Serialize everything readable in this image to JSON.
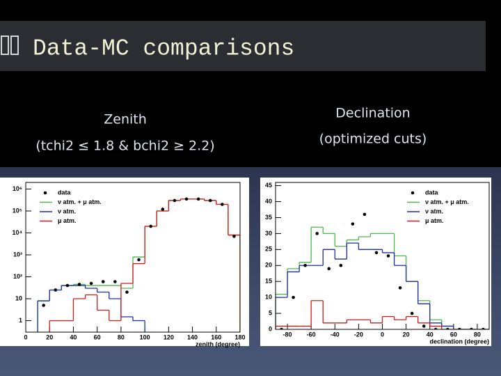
{
  "title": "Data-MC comparisons",
  "panels": [
    {
      "heading": "Zenith",
      "subheading": "(tchi2 ≤ 1.8 & bchi2 ≥ 2.2)"
    },
    {
      "heading": "Declination",
      "subheading": "(optimized cuts)"
    }
  ],
  "chart_data": [
    {
      "type": "histogram",
      "xlabel": "zenith (degree)",
      "xlim": [
        0,
        180
      ],
      "xticks": [
        0,
        20,
        40,
        60,
        80,
        100,
        120,
        140,
        160,
        180
      ],
      "ylim": [
        0.3,
        2000000
      ],
      "ylog": true,
      "yticks": [
        1,
        10,
        {
          "value": 100,
          "label": "10²"
        },
        {
          "value": 1000,
          "label": "10³"
        },
        {
          "value": 10000,
          "label": "10⁴"
        },
        {
          "value": 100000,
          "label": "10⁵"
        },
        {
          "value": 1000000,
          "label": "10⁶"
        }
      ],
      "legend": "upper left",
      "series": [
        {
          "name": "data",
          "color": "#000000",
          "kind": "points",
          "bins": [
            10,
            20,
            30,
            40,
            50,
            60,
            70,
            80,
            90,
            100,
            110,
            120,
            130,
            140,
            150,
            160,
            170,
            180
          ],
          "values": [
            5,
            25,
            40,
            45,
            50,
            60,
            60,
            20,
            600,
            20000,
            120000,
            300000,
            350000,
            350000,
            300000,
            200000,
            7000
          ]
        },
        {
          "name": "ν atm. + μ atm.",
          "color": "#4cb848",
          "kind": "step",
          "bins": [
            10,
            20,
            30,
            40,
            50,
            60,
            70,
            80,
            90,
            100,
            110,
            120,
            130,
            140,
            150,
            160,
            170,
            180
          ],
          "values": [
            8,
            25,
            40,
            45,
            40,
            40,
            40,
            30,
            800,
            20000,
            100000,
            300000,
            350000,
            350000,
            300000,
            200000,
            8000
          ]
        },
        {
          "name": "ν atm.",
          "color": "#1c2ca8",
          "kind": "step",
          "bins": [
            10,
            20,
            30,
            40,
            50,
            60,
            70,
            80,
            90,
            100
          ],
          "values": [
            8,
            25,
            40,
            40,
            30,
            20,
            10,
            1.5,
            1
          ]
        },
        {
          "name": "μ atm.",
          "color": "#d01818",
          "kind": "step",
          "bins": [
            20,
            30,
            40,
            50,
            60,
            70,
            80,
            90,
            100,
            110,
            120,
            130,
            140,
            150,
            160,
            170,
            180
          ],
          "values": [
            1,
            1,
            10,
            15,
            3,
            1,
            50,
            400,
            20000,
            100000,
            300000,
            350000,
            350000,
            300000,
            200000,
            8000
          ]
        }
      ]
    },
    {
      "type": "histogram",
      "xlabel": "declination (degree)",
      "xlim": [
        -90,
        90
      ],
      "xticks": [
        -80,
        -60,
        -40,
        -20,
        0,
        20,
        40,
        60,
        80
      ],
      "ylim": [
        0,
        46
      ],
      "ylog": false,
      "yticks": [
        0,
        5,
        10,
        15,
        20,
        25,
        30,
        35,
        40,
        45
      ],
      "legend": "upper right",
      "series": [
        {
          "name": "data",
          "color": "#000000",
          "kind": "points",
          "bins": [
            -90,
            -80,
            -70,
            -60,
            -50,
            -40,
            -30,
            -20,
            -10,
            0,
            10,
            20,
            30,
            40,
            50,
            60,
            70,
            80,
            90
          ],
          "values": [
            0,
            10,
            20,
            30,
            19,
            20,
            33,
            36,
            24,
            23,
            13,
            5,
            1,
            0,
            0,
            0,
            0,
            0
          ]
        },
        {
          "name": "ν atm. + μ atm.",
          "color": "#4cb848",
          "kind": "step",
          "bins": [
            -90,
            -80,
            -70,
            -60,
            -50,
            -40,
            -30,
            -20,
            -10,
            0,
            10,
            20,
            30,
            40,
            50,
            60,
            70,
            80,
            90
          ],
          "values": [
            11,
            19,
            21,
            32,
            30,
            26,
            28,
            29,
            30,
            30,
            23,
            15,
            9,
            3,
            1,
            0,
            0,
            0
          ]
        },
        {
          "name": "ν atm.",
          "color": "#1c2ca8",
          "kind": "step",
          "bins": [
            -90,
            -80,
            -70,
            -60,
            -50,
            -40,
            -30,
            -20,
            -10,
            0,
            10,
            20,
            30,
            40,
            50,
            60,
            70,
            80,
            90
          ],
          "values": [
            10,
            18,
            20,
            20,
            25,
            22,
            27,
            25,
            25,
            24,
            20,
            15,
            8,
            2,
            1,
            0,
            0,
            0
          ]
        },
        {
          "name": "μ atm.",
          "color": "#d01818",
          "kind": "step",
          "bins": [
            -90,
            -80,
            -70,
            -60,
            -50,
            -40,
            -30,
            -20,
            -10,
            0,
            10,
            20,
            30,
            40,
            50,
            60,
            70,
            80,
            90
          ],
          "values": [
            1,
            1,
            1,
            9,
            2,
            2,
            3,
            3,
            2,
            4,
            3,
            4,
            2,
            1,
            0,
            0,
            0,
            0
          ]
        }
      ]
    }
  ]
}
